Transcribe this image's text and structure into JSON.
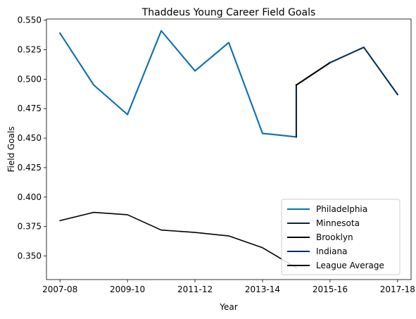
{
  "chart_data": {
    "type": "line",
    "title": "Thaddeus Young Career Field Goals",
    "xlabel": "Year",
    "ylabel": "Field Goals",
    "xlim": [
      -0.4,
      10.4
    ],
    "ylim": [
      0.33,
      0.551
    ],
    "x_ticks": [
      {
        "pos": 0,
        "label": "2007-08"
      },
      {
        "pos": 2,
        "label": "2009-10"
      },
      {
        "pos": 4,
        "label": "2011-12"
      },
      {
        "pos": 6,
        "label": "2013-14"
      },
      {
        "pos": 8,
        "label": "2015-16"
      },
      {
        "pos": 10,
        "label": "2017-18"
      }
    ],
    "y_ticks": [
      {
        "value": 0.35,
        "label": "0.350"
      },
      {
        "value": 0.375,
        "label": "0.375"
      },
      {
        "value": 0.4,
        "label": "0.400"
      },
      {
        "value": 0.425,
        "label": "0.425"
      },
      {
        "value": 0.45,
        "label": "0.450"
      },
      {
        "value": 0.475,
        "label": "0.475"
      },
      {
        "value": 0.5,
        "label": "0.500"
      },
      {
        "value": 0.525,
        "label": "0.525"
      },
      {
        "value": 0.55,
        "label": "0.550"
      }
    ],
    "grid": false,
    "legend_position": "lower-right",
    "series": [
      {
        "name": "Philadelphia",
        "color": "#0a6eb4",
        "points": [
          [
            0,
            0.539
          ],
          [
            1,
            0.495
          ],
          [
            2,
            0.47
          ],
          [
            3,
            0.541
          ],
          [
            4,
            0.507
          ],
          [
            5,
            0.531
          ],
          [
            6,
            0.454
          ],
          [
            7,
            0.451
          ]
        ]
      },
      {
        "name": "Minnesota",
        "color": "#0c2340",
        "points": [
          [
            7,
            0.451
          ],
          [
            7,
            0.495
          ]
        ]
      },
      {
        "name": "Brooklyn",
        "color": "#000000",
        "points": [
          [
            7,
            0.495
          ],
          [
            8,
            0.514
          ]
        ]
      },
      {
        "name": "Indiana",
        "color": "#002d62",
        "points": [
          [
            8,
            0.514
          ],
          [
            9,
            0.527
          ],
          [
            10,
            0.487
          ]
        ]
      },
      {
        "name": "League Average",
        "color": "#000000",
        "points": [
          [
            0,
            0.38
          ],
          [
            1,
            0.387
          ],
          [
            2,
            0.385
          ],
          [
            3,
            0.372
          ],
          [
            4,
            0.37
          ],
          [
            5,
            0.367
          ],
          [
            6,
            0.357
          ],
          [
            7,
            0.34
          ]
        ]
      }
    ]
  }
}
